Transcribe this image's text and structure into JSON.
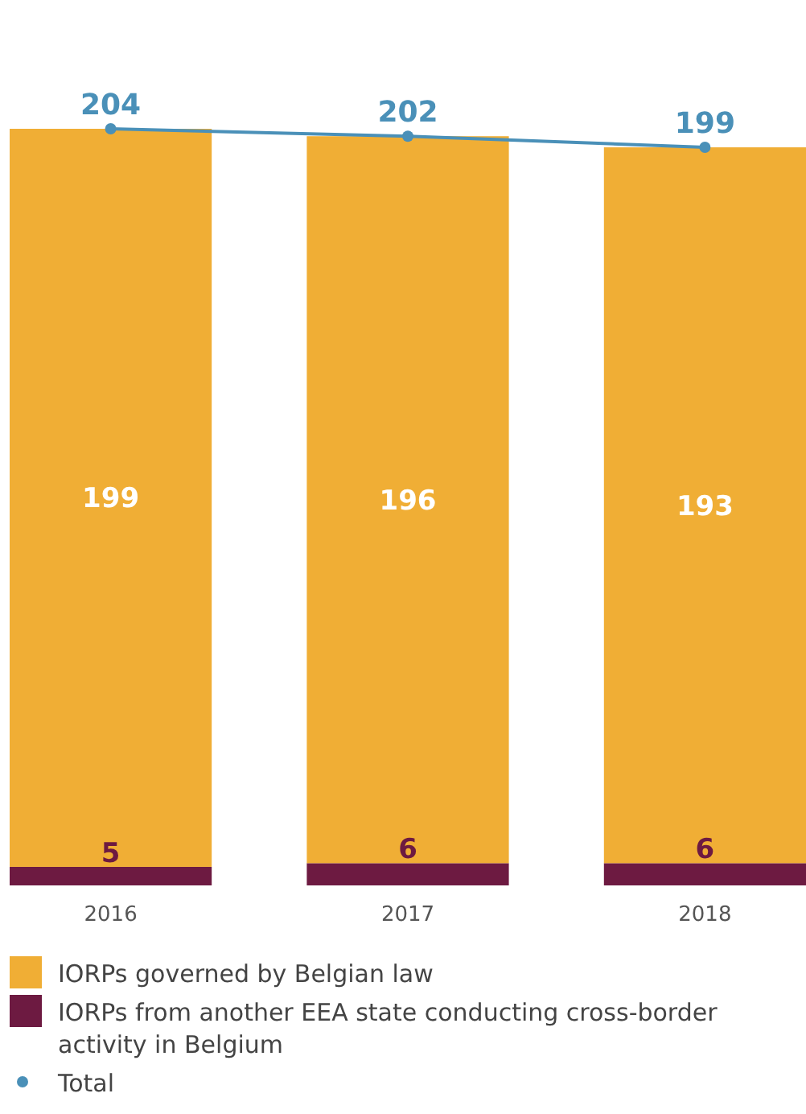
{
  "chart_data": {
    "type": "bar",
    "stacked": true,
    "categories": [
      "2016",
      "2017",
      "2018"
    ],
    "data_labels": true,
    "legend": "bottom",
    "series": [
      {
        "name": "IORPs from another EEA state conducting cross-border activity in Belgium",
        "color": "#6d1a41",
        "values": [
          5,
          6,
          6
        ]
      },
      {
        "name": "IORPs governed by Belgian law",
        "color": "#f0ae35",
        "values": [
          199,
          196,
          193
        ]
      },
      {
        "name": "Total",
        "type": "line",
        "marker": "circle",
        "color": "#4a90b8",
        "values": [
          204,
          202,
          199
        ]
      }
    ]
  }
}
